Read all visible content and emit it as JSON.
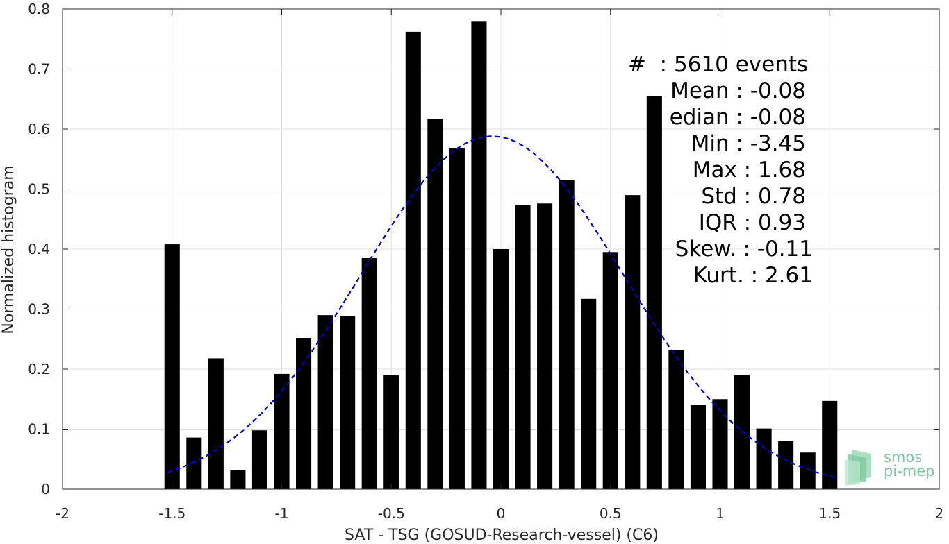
{
  "chart_data": {
    "type": "bar",
    "xlabel": "SAT - TSG (GOSUD-Research-vessel) (C6)",
    "ylabel": "Normalized histogram",
    "xlim": [
      -2,
      2
    ],
    "ylim": [
      0,
      0.8
    ],
    "xticks": [
      "-2",
      "-1.5",
      "-1",
      "-0.5",
      "0",
      "0.5",
      "1",
      "1.5",
      "2"
    ],
    "yticks": [
      "0",
      "0.1",
      "0.2",
      "0.3",
      "0.4",
      "0.5",
      "0.6",
      "0.7",
      "0.8"
    ],
    "grid": true,
    "bar_width": 0.07,
    "bar_color": "#000000",
    "series": [
      {
        "x": [
          -1.5,
          -1.4,
          -1.3,
          -1.2,
          -1.1,
          -1.0,
          -0.9,
          -0.8,
          -0.7,
          -0.6,
          -0.5,
          -0.4,
          -0.3,
          -0.2,
          -0.1,
          0.0,
          0.1,
          0.2,
          0.3,
          0.4,
          0.5,
          0.6,
          0.7,
          0.8,
          0.9,
          1.0,
          1.1,
          1.2,
          1.3,
          1.4,
          1.5
        ],
        "values": [
          0.408,
          0.086,
          0.218,
          0.032,
          0.098,
          0.192,
          0.252,
          0.29,
          0.288,
          0.385,
          0.19,
          0.762,
          0.617,
          0.568,
          0.78,
          0.4,
          0.474,
          0.476,
          0.515,
          0.317,
          0.395,
          0.49,
          0.655,
          0.232,
          0.14,
          0.15,
          0.19,
          0.101,
          0.08,
          0.061,
          0.147
        ]
      }
    ],
    "fit_curve": {
      "style": "dashed",
      "color": "#0000dd",
      "mean": -0.04,
      "std": 0.6,
      "peak": 0.588,
      "x_range": [
        -1.52,
        1.54
      ]
    }
  },
  "stats": {
    "count": "#  : 5610 events",
    "mean": "Mean : -0.08",
    "median": "edian : -0.08",
    "min": "Min : -3.45",
    "max": "Max : 1.68",
    "std": "Std : 0.78",
    "iqr": "IQR : 0.93",
    "skew": "Skew. : -0.11",
    "kurt": "Kurt. : 2.61"
  },
  "logo": {
    "line1": "smos",
    "line2": "pi-mep",
    "color": "#7fc8a0"
  }
}
